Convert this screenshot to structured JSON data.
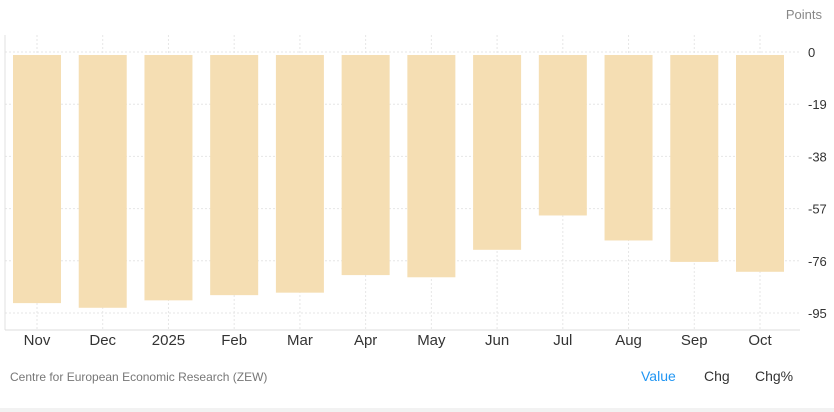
{
  "chart_data": {
    "type": "bar",
    "unit_label": "Points",
    "categories": [
      "Nov",
      "Dec",
      "2025",
      "Feb",
      "Mar",
      "Apr",
      "May",
      "Jun",
      "Jul",
      "Aug",
      "Sep",
      "Oct"
    ],
    "values": [
      -91.4,
      -93.1,
      -90.4,
      -88.5,
      -87.6,
      -81.2,
      -82.0,
      -72.0,
      -59.5,
      -68.6,
      -76.4,
      -80.0
    ],
    "yticks": [
      0,
      -19,
      -38,
      -57,
      -76,
      -95
    ],
    "ylim": [
      -100,
      0
    ],
    "grid": true,
    "bar_color": "#f5deb3"
  },
  "source": "Centre for European Economic Research (ZEW)",
  "toggles": {
    "value": "Value",
    "chg": "Chg",
    "chgp": "Chg%"
  },
  "active_toggle_color": "#2196f3"
}
